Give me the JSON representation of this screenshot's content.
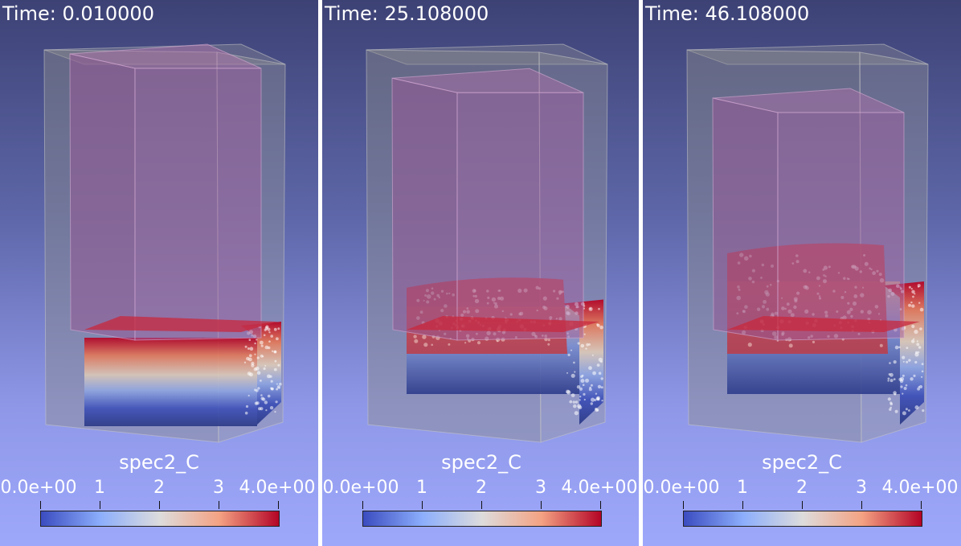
{
  "colormap": {
    "name": "coolwarm",
    "stops": [
      "#3b4cc0",
      "#8caefc",
      "#dddcdc",
      "#f4a283",
      "#b40426"
    ]
  },
  "legend": {
    "title": "spec2_C",
    "tick_labels": [
      "0.0e+00",
      "1",
      "2",
      "3",
      "4.0e+00"
    ],
    "tick_values": [
      0,
      1,
      2,
      3,
      4
    ],
    "range": [
      0,
      4
    ]
  },
  "panels": [
    {
      "time_label": "Time: 0.010000",
      "liquid_level": 0.0
    },
    {
      "time_label": "Time: 25.108000",
      "liquid_level": 0.55
    },
    {
      "time_label": "Time: 46.108000",
      "liquid_level": 1.0
    }
  ]
}
